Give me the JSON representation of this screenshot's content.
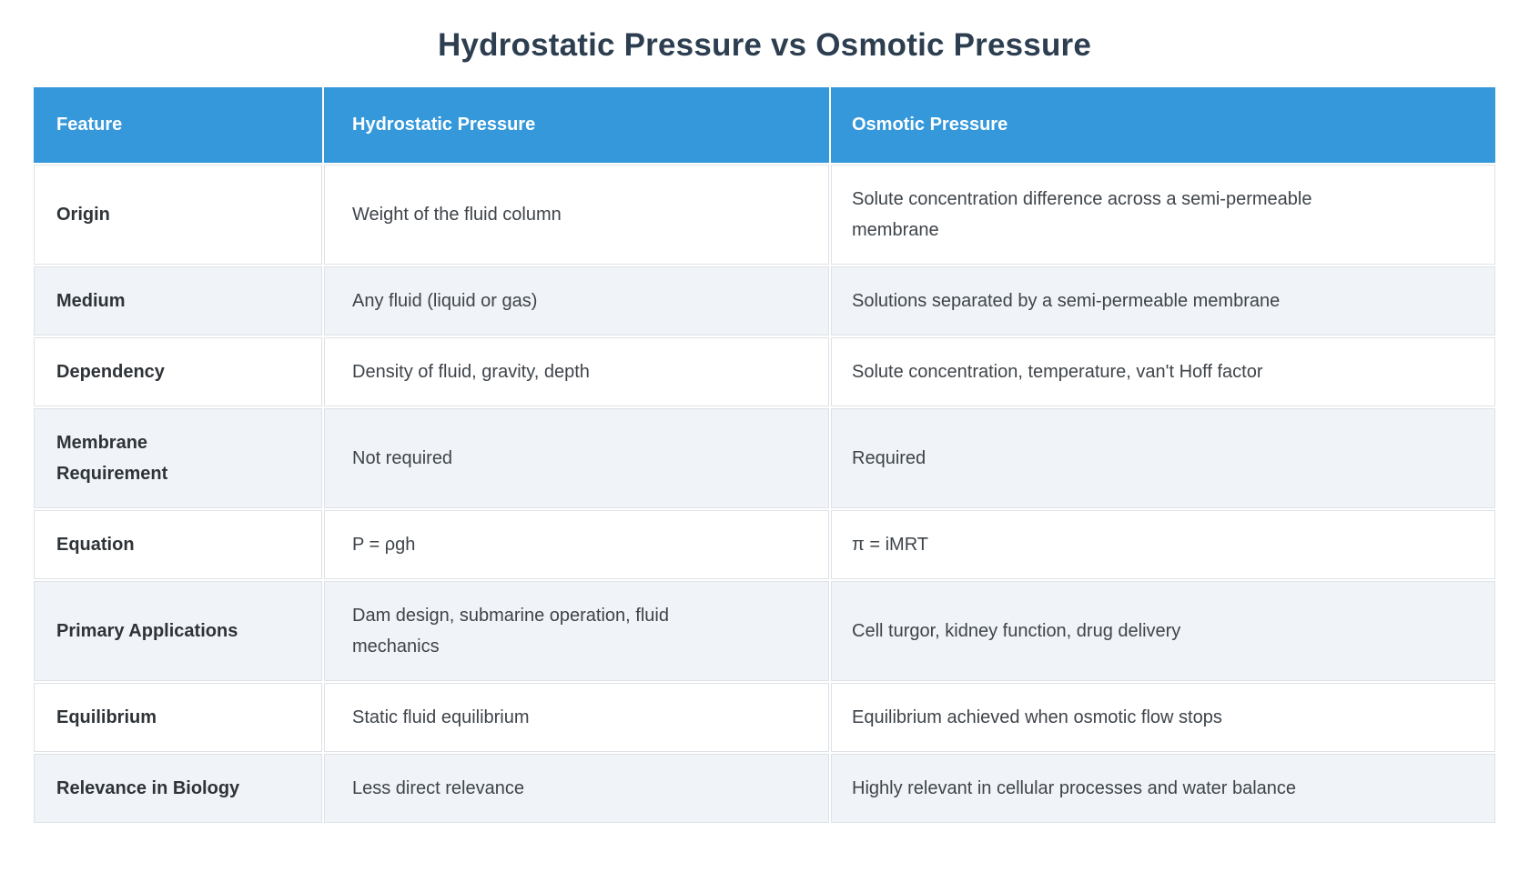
{
  "page": {
    "title": "Hydrostatic Pressure vs Osmotic Pressure"
  },
  "colors": {
    "header_bg": "#3498db",
    "header_text": "#ffffff",
    "row_bg": "#ffffff",
    "row_alt_bg": "#f0f4f8",
    "border": "#dee2e6",
    "title_text": "#2c3e50",
    "feature_text": "#2e3338",
    "cell_text": "#3e444a"
  },
  "table": {
    "columns": [
      "Feature",
      "Hydrostatic Pressure",
      "Osmotic Pressure"
    ],
    "rows": [
      {
        "feature": "Origin",
        "hydrostatic": "Weight of the fluid column",
        "osmotic": "Solute concentration difference across a semi-permeable membrane"
      },
      {
        "feature": "Medium",
        "hydrostatic": "Any fluid (liquid or gas)",
        "osmotic": "Solutions separated by a semi-permeable membrane"
      },
      {
        "feature": "Dependency",
        "hydrostatic": "Density of fluid, gravity, depth",
        "osmotic": "Solute concentration, temperature, van't Hoff factor"
      },
      {
        "feature": "Membrane Requirement",
        "hydrostatic": "Not required",
        "osmotic": "Required"
      },
      {
        "feature": "Equation",
        "hydrostatic": "P = ρgh",
        "osmotic": "π = iMRT"
      },
      {
        "feature": "Primary Applications",
        "hydrostatic": "Dam design, submarine operation, fluid mechanics",
        "osmotic": "Cell turgor, kidney function, drug delivery"
      },
      {
        "feature": "Equilibrium",
        "hydrostatic": "Static fluid equilibrium",
        "osmotic": "Equilibrium achieved when osmotic flow stops"
      },
      {
        "feature": "Relevance in Biology",
        "hydrostatic": "Less direct relevance",
        "osmotic": "Highly relevant in cellular processes and water balance"
      }
    ]
  }
}
